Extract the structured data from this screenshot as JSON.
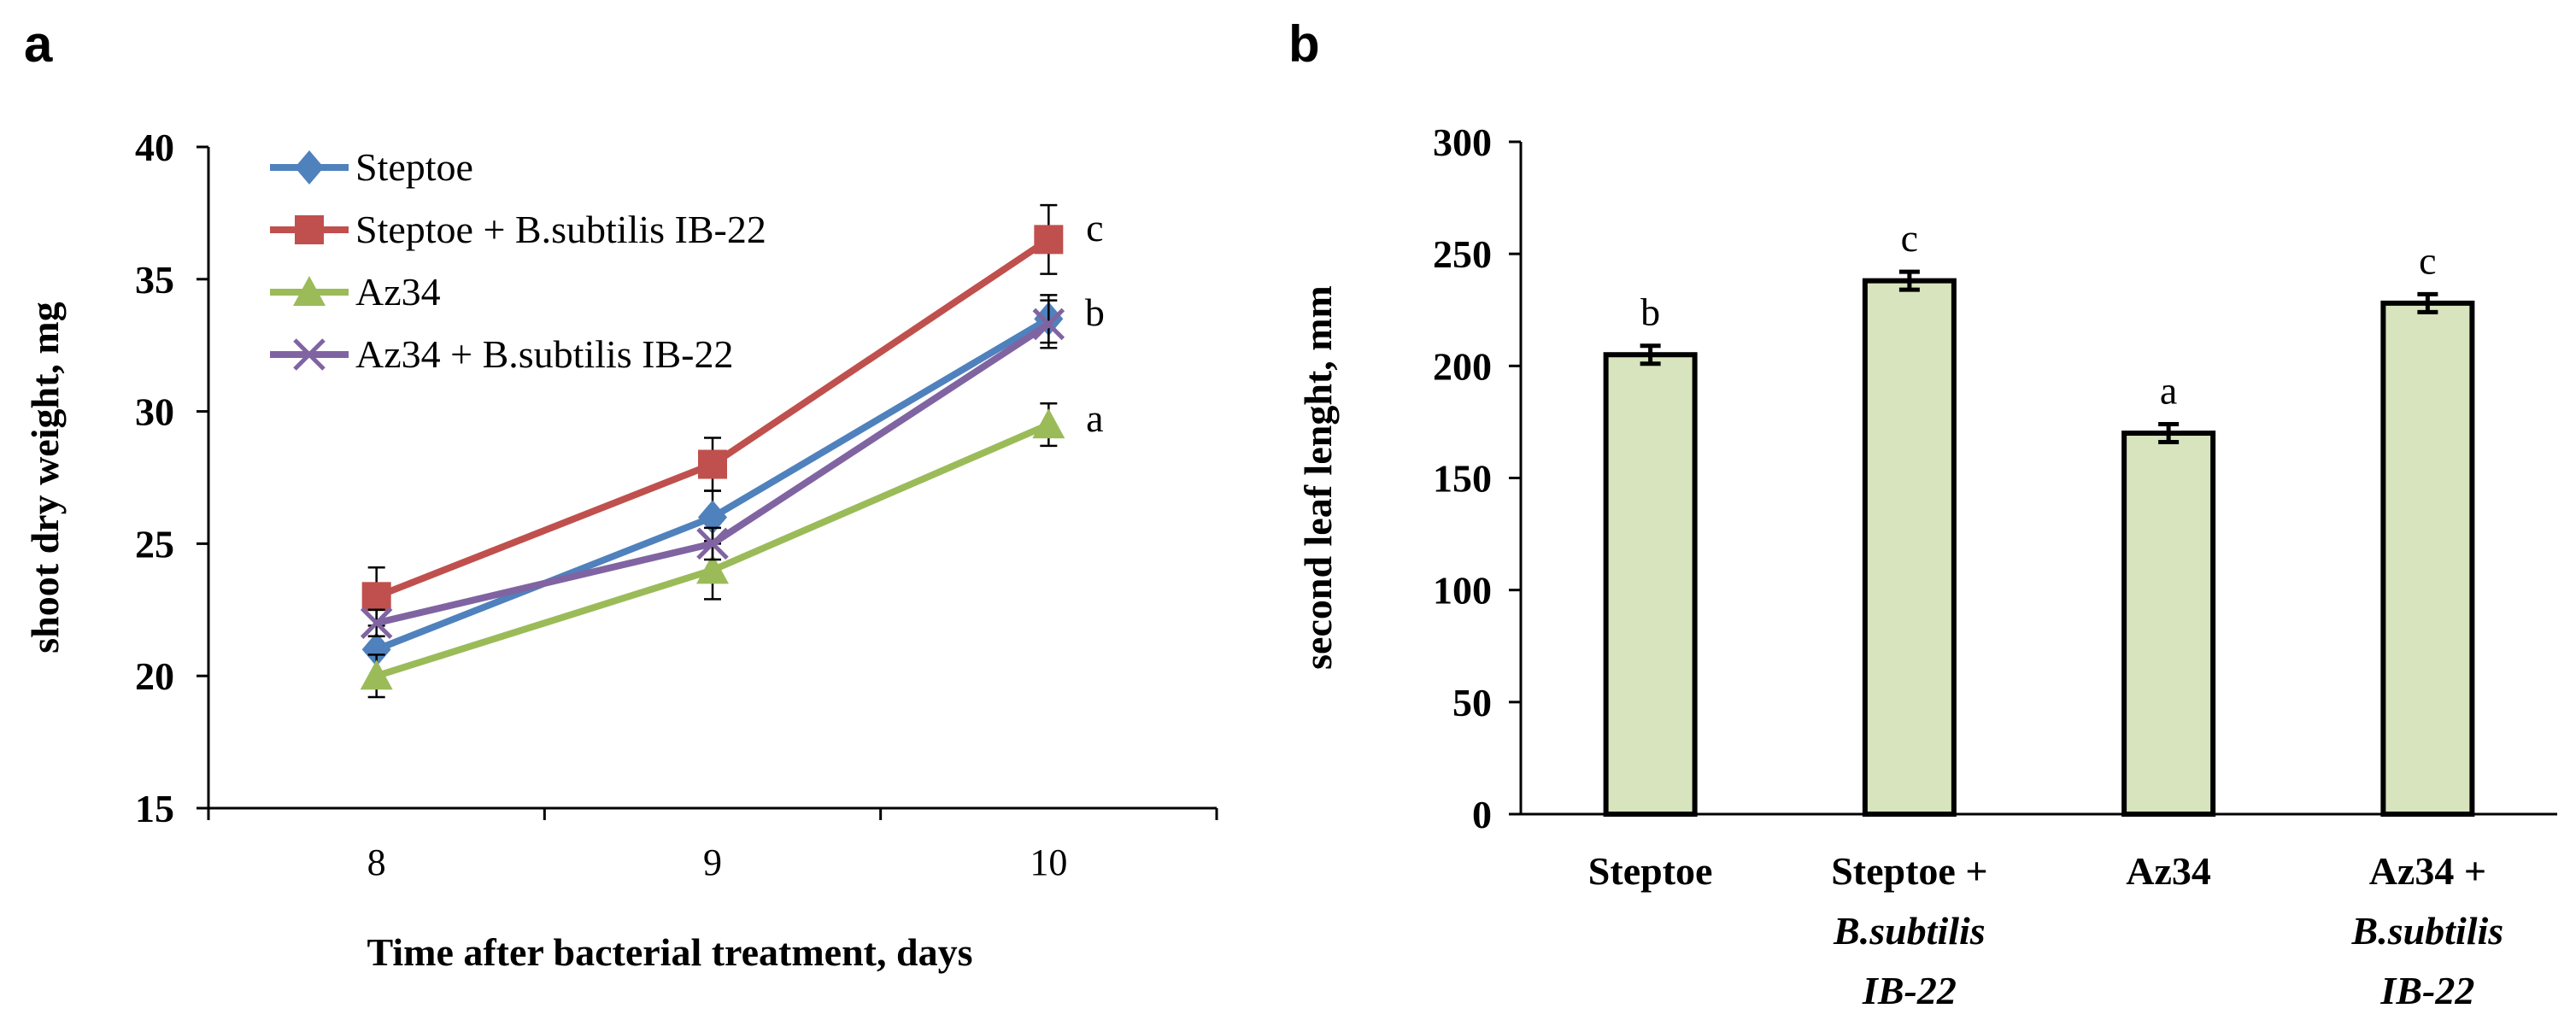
{
  "colors": {
    "steptoe": "#4F81BD",
    "steptoe_bs": "#C0504D",
    "az34": "#9BBB59",
    "az34_bs": "#8064A2",
    "bar_fill": "#D7E4BD",
    "axis": "#000000"
  },
  "chart_data": [
    {
      "panel": "a",
      "type": "line",
      "title": "",
      "xlabel": "Time after bacterial treatment, days",
      "ylabel": "shoot dry weight, mg",
      "x": [
        8,
        9,
        10
      ],
      "xlim": [
        7.5,
        10.5
      ],
      "ylim": [
        15,
        40
      ],
      "yticks": [
        15,
        20,
        25,
        30,
        35,
        40
      ],
      "legend_position": "top-left",
      "series": [
        {
          "name": "Steptoe",
          "color_key": "steptoe",
          "marker": "diamond-icon",
          "values": [
            21,
            26,
            33.5
          ],
          "errors": [
            0,
            1.0,
            0.9
          ]
        },
        {
          "name": "Steptoe + B.subtilis IB-22",
          "color_key": "steptoe_bs",
          "marker": "square-icon",
          "values": [
            23,
            28,
            36.5
          ],
          "errors": [
            1.1,
            1.0,
            1.3
          ]
        },
        {
          "name": "Az34",
          "color_key": "az34",
          "marker": "triangle-icon",
          "values": [
            20,
            24,
            29.5
          ],
          "errors": [
            0.8,
            1.1,
            0.8
          ]
        },
        {
          "name": "Az34 + B.subtilis IB-22",
          "color_key": "az34_bs",
          "marker": "x-icon",
          "values": [
            22,
            25,
            33.3
          ],
          "errors": [
            0.5,
            0.6,
            0.9
          ]
        }
      ],
      "annotations": [
        {
          "text": "c",
          "x": 10,
          "y": 36.9
        },
        {
          "text": "b",
          "x": 10,
          "y": 33.7
        },
        {
          "text": "a",
          "x": 10,
          "y": 29.7
        }
      ]
    },
    {
      "panel": "b",
      "type": "bar",
      "title": "",
      "xlabel": "",
      "ylabel": "second leaf lenght, mm",
      "ylim": [
        0,
        300
      ],
      "yticks": [
        0,
        50,
        100,
        150,
        200,
        250,
        300
      ],
      "categories": [
        {
          "line1": "Steptoe",
          "line2": "",
          "line3": ""
        },
        {
          "line1": "Steptoe +",
          "line2": "B.subtilis",
          "line3": "IB-22"
        },
        {
          "line1": "Az34",
          "line2": "",
          "line3": ""
        },
        {
          "line1": "Az34 +",
          "line2": "B.subtilis",
          "line3": "IB-22"
        }
      ],
      "values": [
        205,
        238,
        170,
        228
      ],
      "errors": [
        4,
        4,
        4,
        4
      ],
      "labels": [
        "b",
        "c",
        "a",
        "c"
      ]
    }
  ]
}
